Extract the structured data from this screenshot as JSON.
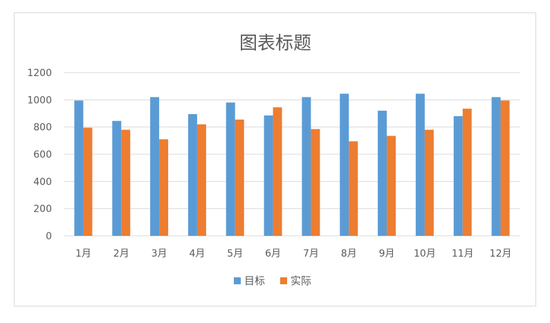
{
  "chart_data": {
    "type": "bar",
    "title": "图表标题",
    "xlabel": "",
    "ylabel": "",
    "categories": [
      "1月",
      "2月",
      "3月",
      "4月",
      "5月",
      "6月",
      "7月",
      "8月",
      "9月",
      "10月",
      "11月",
      "12月"
    ],
    "series": [
      {
        "name": "目标",
        "color": "#5B9BD5",
        "values": [
          995,
          845,
          1020,
          895,
          980,
          885,
          1020,
          1045,
          920,
          1045,
          880,
          1020
        ]
      },
      {
        "name": "实际",
        "color": "#ED7D31",
        "values": [
          795,
          780,
          710,
          820,
          855,
          945,
          785,
          695,
          735,
          780,
          935,
          995
        ]
      }
    ],
    "ylim": [
      0,
      1200
    ],
    "yticks": [
      0,
      200,
      400,
      600,
      800,
      1000,
      1200
    ],
    "grid": true,
    "legend_position": "bottom"
  }
}
